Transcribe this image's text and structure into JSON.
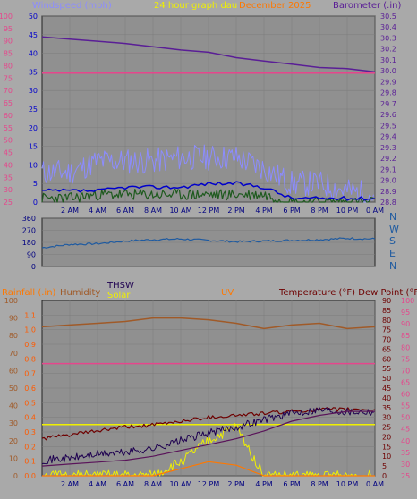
{
  "header": {
    "windspeed_title": "Windspeed (mph)",
    "graph_title": "24 hour graph dau",
    "date_text": "December 2025",
    "barometer_title": "Barometer (.in)"
  },
  "panel2": {
    "direction_labels": [
      "N",
      "W",
      "S",
      "E",
      "N"
    ]
  },
  "panel3_labels": {
    "rainfall": "Rainfall (.in)",
    "humidity": "Humidity",
    "thsw": "THSW",
    "solar": "Solar",
    "uv": "UV",
    "temperature_dew": "Temperature (°F) Dew Point (°F)"
  },
  "colors": {
    "wind_gust": "#8c8cff",
    "wind_avg": "#0000cc",
    "wind_low": "#1e5a1e",
    "barometer": "#5a1e96",
    "pink_line": "#e6468c",
    "direction": "#1e5aa0",
    "humidity": "#a05a28",
    "rain_axis": "#ff5a00",
    "uv": "#ff7800",
    "solar": "#f0f000",
    "temperature": "#6e0000",
    "dew_point": "#5a145a",
    "thsw": "#1e0050"
  },
  "chart_data": [
    {
      "type": "line",
      "title": "24 hour graph dau",
      "x_ticks": [
        "2 AM",
        "4 AM",
        "6 AM",
        "8 AM",
        "10 AM",
        "12 PM",
        "2 PM",
        "4 PM",
        "6 PM",
        "8 PM",
        "10 PM",
        "0 AM"
      ],
      "left_axis": {
        "label": "Windspeed (mph)",
        "ylim": [
          25,
          100
        ],
        "ticks": [
          25,
          30,
          35,
          40,
          45,
          50,
          55,
          60,
          65,
          70,
          75,
          80,
          85,
          90,
          95,
          100
        ]
      },
      "left_axis2": {
        "ylim": [
          0,
          50
        ],
        "ticks": [
          0,
          5,
          10,
          15,
          20,
          25,
          30,
          35,
          40,
          45,
          50
        ]
      },
      "right_axis": {
        "label": "Barometer (.in)",
        "ylim": [
          28.8,
          30.5
        ],
        "ticks": [
          28.8,
          28.9,
          29.0,
          29.1,
          29.2,
          29.3,
          29.4,
          29.5,
          29.6,
          29.7,
          29.8,
          29.9,
          30.0,
          30.1,
          30.2,
          30.3,
          30.4,
          30.5
        ]
      },
      "x_hours": [
        0,
        2,
        4,
        6,
        8,
        10,
        12,
        14,
        16,
        18,
        20,
        22,
        24
      ],
      "series": [
        {
          "name": "Barometer",
          "axis": "right",
          "values": [
            30.31,
            30.29,
            30.27,
            30.25,
            30.22,
            30.19,
            30.17,
            30.12,
            30.09,
            30.06,
            30.03,
            30.02,
            29.99
          ]
        },
        {
          "name": "pink_line",
          "axis": "left",
          "values": [
            77,
            77,
            77,
            77,
            77,
            77,
            77,
            77,
            77,
            77,
            77,
            77,
            77
          ]
        },
        {
          "name": "Wind gust",
          "axis": "left2",
          "values": [
            8,
            8,
            11,
            11,
            11,
            12,
            12,
            12,
            9,
            5,
            5,
            3,
            2
          ]
        },
        {
          "name": "Wind average",
          "axis": "left2",
          "values": [
            3,
            3,
            3,
            4,
            4,
            4,
            5,
            5,
            4,
            1,
            1,
            1,
            1
          ]
        },
        {
          "name": "Wind low",
          "axis": "left2",
          "values": [
            1,
            1,
            2,
            2,
            2,
            2,
            2,
            2,
            2,
            0,
            0,
            0,
            0
          ]
        }
      ]
    },
    {
      "type": "line",
      "title": "",
      "left_axis": {
        "ylim": [
          0,
          360
        ],
        "ticks": [
          0,
          90,
          180,
          270,
          360
        ]
      },
      "x_hours": [
        0,
        2,
        4,
        6,
        8,
        10,
        12,
        14,
        16,
        18,
        20,
        22,
        24
      ],
      "series": [
        {
          "name": "Wind direction",
          "values": [
            140,
            165,
            170,
            190,
            200,
            205,
            195,
            185,
            190,
            195,
            200,
            210,
            205
          ]
        }
      ]
    },
    {
      "type": "line",
      "title": "",
      "x_ticks": [
        "2 AM",
        "4 AM",
        "6 AM",
        "8 AM",
        "10 AM",
        "12 PM",
        "2 PM",
        "4 PM",
        "6 PM",
        "8 PM",
        "10 PM",
        "0 AM"
      ],
      "left_axis_humidity": {
        "label": "Humidity",
        "ylim": [
          0,
          100
        ],
        "ticks": [
          0,
          10,
          20,
          30,
          40,
          50,
          60,
          70,
          80,
          90,
          100
        ]
      },
      "left_axis_rain": {
        "label": "Rainfall (.in)",
        "ylim": [
          0,
          1.2
        ],
        "ticks": [
          0,
          0.1,
          0.2,
          0.3,
          0.4,
          0.5,
          0.6,
          0.7,
          0.8,
          0.9,
          1.0,
          1.1
        ]
      },
      "right_axis_temp": {
        "label": "Temperature (°F) Dew Point (°F)",
        "ylim": [
          0,
          90
        ],
        "ticks": [
          0,
          5,
          10,
          15,
          20,
          25,
          30,
          35,
          40,
          45,
          50,
          55,
          60,
          65,
          70,
          75,
          80,
          85,
          90
        ]
      },
      "right_axis_temp2": {
        "ylim": [
          25,
          100
        ],
        "ticks": [
          25,
          30,
          35,
          40,
          45,
          50,
          55,
          60,
          65,
          70,
          75,
          80,
          85,
          90,
          95,
          100
        ]
      },
      "x_hours": [
        0,
        2,
        4,
        6,
        8,
        10,
        12,
        14,
        16,
        18,
        20,
        22,
        24
      ],
      "series": [
        {
          "name": "Humidity",
          "axis": "humidity",
          "values": [
            85,
            86,
            87,
            88,
            90,
            90,
            89,
            87,
            84,
            86,
            87,
            84,
            85
          ]
        },
        {
          "name": "pink_line",
          "axis": "humidity",
          "values": [
            64,
            64,
            64,
            64,
            64,
            64,
            64,
            64,
            64,
            64,
            64,
            64,
            64
          ]
        },
        {
          "name": "Rain rate",
          "axis": "rain",
          "values": [
            0.35,
            0.35,
            0.35,
            0.35,
            0.35,
            0.35,
            0.35,
            0.35,
            0.35,
            0.35,
            0.35,
            0.35,
            0.35
          ]
        },
        {
          "name": "Solar",
          "axis": "humidity",
          "values": [
            0,
            0,
            0,
            0,
            0,
            8,
            20,
            28,
            0,
            0,
            0,
            0,
            0
          ]
        },
        {
          "name": "UV",
          "axis": "humidity",
          "values": [
            0,
            0,
            0,
            0,
            0,
            4,
            8,
            6,
            0,
            0,
            0,
            0,
            0
          ]
        },
        {
          "name": "Temperature",
          "axis": "temp",
          "values": [
            19,
            21,
            23,
            25,
            26,
            28,
            30,
            31,
            32,
            33,
            34,
            34,
            34
          ]
        },
        {
          "name": "THSW",
          "axis": "temp",
          "values": [
            8,
            9,
            11,
            12,
            14,
            18,
            22,
            25,
            29,
            32,
            34,
            33,
            33
          ]
        },
        {
          "name": "Dew Point",
          "axis": "temp",
          "values": [
            5,
            6,
            7,
            8,
            10,
            13,
            16,
            19,
            23,
            28,
            31,
            33,
            33
          ]
        }
      ]
    }
  ]
}
